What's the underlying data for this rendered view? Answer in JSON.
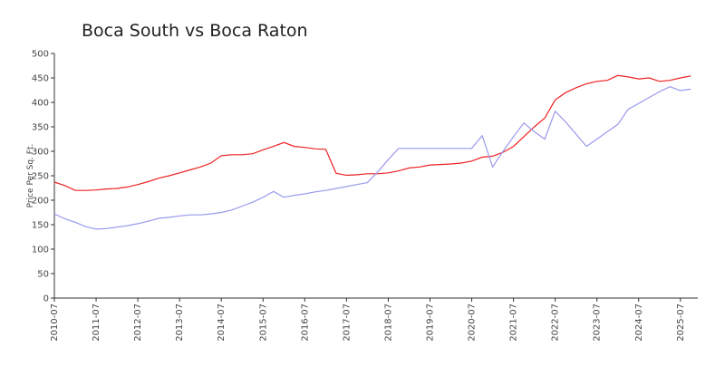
{
  "chart_data": {
    "type": "line",
    "title": "Boca South vs Boca Raton",
    "ylabel": "Price Per Sq. Ft.",
    "x": [
      "2010-07",
      "2010-10",
      "2011-01",
      "2011-04",
      "2011-07",
      "2011-10",
      "2012-01",
      "2012-04",
      "2012-07",
      "2012-10",
      "2013-01",
      "2013-04",
      "2013-07",
      "2013-10",
      "2014-01",
      "2014-04",
      "2014-07",
      "2014-10",
      "2015-01",
      "2015-04",
      "2015-07",
      "2015-10",
      "2016-01",
      "2016-04",
      "2016-07",
      "2016-10",
      "2017-01",
      "2017-04",
      "2017-07",
      "2017-10",
      "2018-01",
      "2018-04",
      "2018-07",
      "2018-10",
      "2019-01",
      "2019-04",
      "2019-07",
      "2019-10",
      "2020-01",
      "2020-04",
      "2020-07",
      "2020-10",
      "2021-01",
      "2021-04",
      "2021-07",
      "2021-10",
      "2022-01",
      "2022-04",
      "2022-07",
      "2022-10",
      "2023-01",
      "2023-04",
      "2023-07",
      "2023-10",
      "2024-01",
      "2024-04",
      "2024-07",
      "2024-10",
      "2025-01",
      "2025-04",
      "2025-07",
      "2025-10"
    ],
    "series": [
      {
        "color": "#ee2222",
        "values": [
          237,
          230,
          220,
          220,
          221,
          223,
          224,
          227,
          232,
          238,
          245,
          250,
          256,
          262,
          268,
          276,
          291,
          293,
          293,
          295,
          303,
          310,
          318,
          310,
          308,
          305,
          304,
          255,
          251,
          252,
          254,
          254,
          256,
          260,
          266,
          268,
          272,
          273,
          274,
          276,
          280,
          288,
          290,
          298,
          310,
          330,
          350,
          368,
          405,
          420,
          430,
          438,
          443,
          445,
          455,
          452,
          448,
          450,
          443,
          445,
          450,
          454
        ]
      },
      {
        "color": "#9999ee",
        "values": [
          172,
          162,
          155,
          146,
          141,
          142,
          145,
          148,
          152,
          157,
          163,
          165,
          168,
          170,
          170,
          172,
          175,
          180,
          188,
          196,
          206,
          218,
          206,
          210,
          213,
          217,
          220,
          224,
          228,
          232,
          236,
          258,
          283,
          306,
          306,
          306,
          306,
          306,
          306,
          306,
          306,
          332,
          268,
          300,
          330,
          358,
          340,
          325,
          382,
          360,
          335,
          310,
          325,
          340,
          355,
          386,
          398,
          410,
          422,
          432,
          424,
          427
        ]
      }
    ],
    "xlim": [
      "2010-07",
      "2025-12"
    ],
    "xticks": [
      "2010-07",
      "2011-07",
      "2012-07",
      "2013-07",
      "2014-07",
      "2015-07",
      "2016-07",
      "2017-07",
      "2018-07",
      "2019-07",
      "2020-07",
      "2021-07",
      "2022-07",
      "2023-07",
      "2024-07",
      "2025-07"
    ],
    "ylim": [
      0,
      500
    ],
    "yticks": [
      0,
      50,
      100,
      150,
      200,
      250,
      300,
      350,
      400,
      450,
      500
    ]
  }
}
